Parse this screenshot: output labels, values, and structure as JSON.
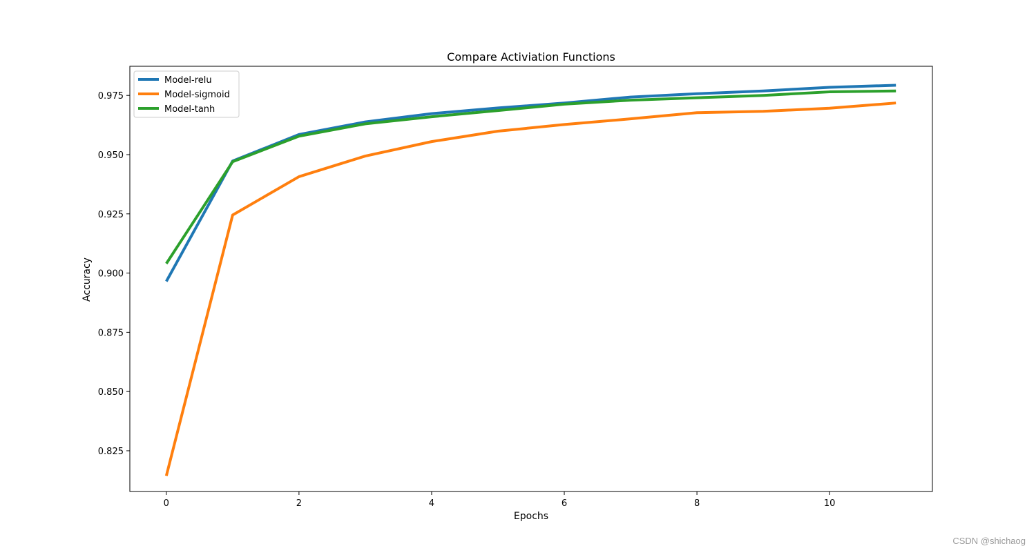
{
  "chart_data": {
    "type": "line",
    "title": "Compare Activiation Functions",
    "xlabel": "Epochs",
    "ylabel": "Accuracy",
    "x": [
      0,
      1,
      2,
      3,
      4,
      5,
      6,
      7,
      8,
      9,
      10,
      11
    ],
    "xlim": [
      -0.55,
      11.55
    ],
    "ylim": [
      0.8078,
      0.9873
    ],
    "xticks": [
      0,
      2,
      4,
      6,
      8,
      10
    ],
    "xtick_labels": [
      "0",
      "2",
      "4",
      "6",
      "8",
      "10"
    ],
    "yticks": [
      0.825,
      0.85,
      0.875,
      0.9,
      0.925,
      0.95,
      0.975
    ],
    "ytick_labels": [
      "0.825",
      "0.850",
      "0.875",
      "0.900",
      "0.925",
      "0.950",
      "0.975"
    ],
    "grid": false,
    "legend_position": "upper-left",
    "series": [
      {
        "name": "Model-relu",
        "color": "#1f77b4",
        "values": [
          0.8965,
          0.9473,
          0.9585,
          0.9638,
          0.9673,
          0.9697,
          0.9718,
          0.9743,
          0.9757,
          0.9769,
          0.9784,
          0.9793
        ]
      },
      {
        "name": "Model-sigmoid",
        "color": "#ff7f0e",
        "values": [
          0.8144,
          0.9245,
          0.9407,
          0.9494,
          0.9555,
          0.9599,
          0.9627,
          0.9651,
          0.9677,
          0.9683,
          0.9696,
          0.9718
        ]
      },
      {
        "name": "Model-tanh",
        "color": "#2ca02c",
        "values": [
          0.904,
          0.947,
          0.9578,
          0.963,
          0.966,
          0.9686,
          0.9713,
          0.973,
          0.974,
          0.975,
          0.9765,
          0.9769
        ]
      }
    ]
  },
  "watermark": "CSDN @shichaog"
}
